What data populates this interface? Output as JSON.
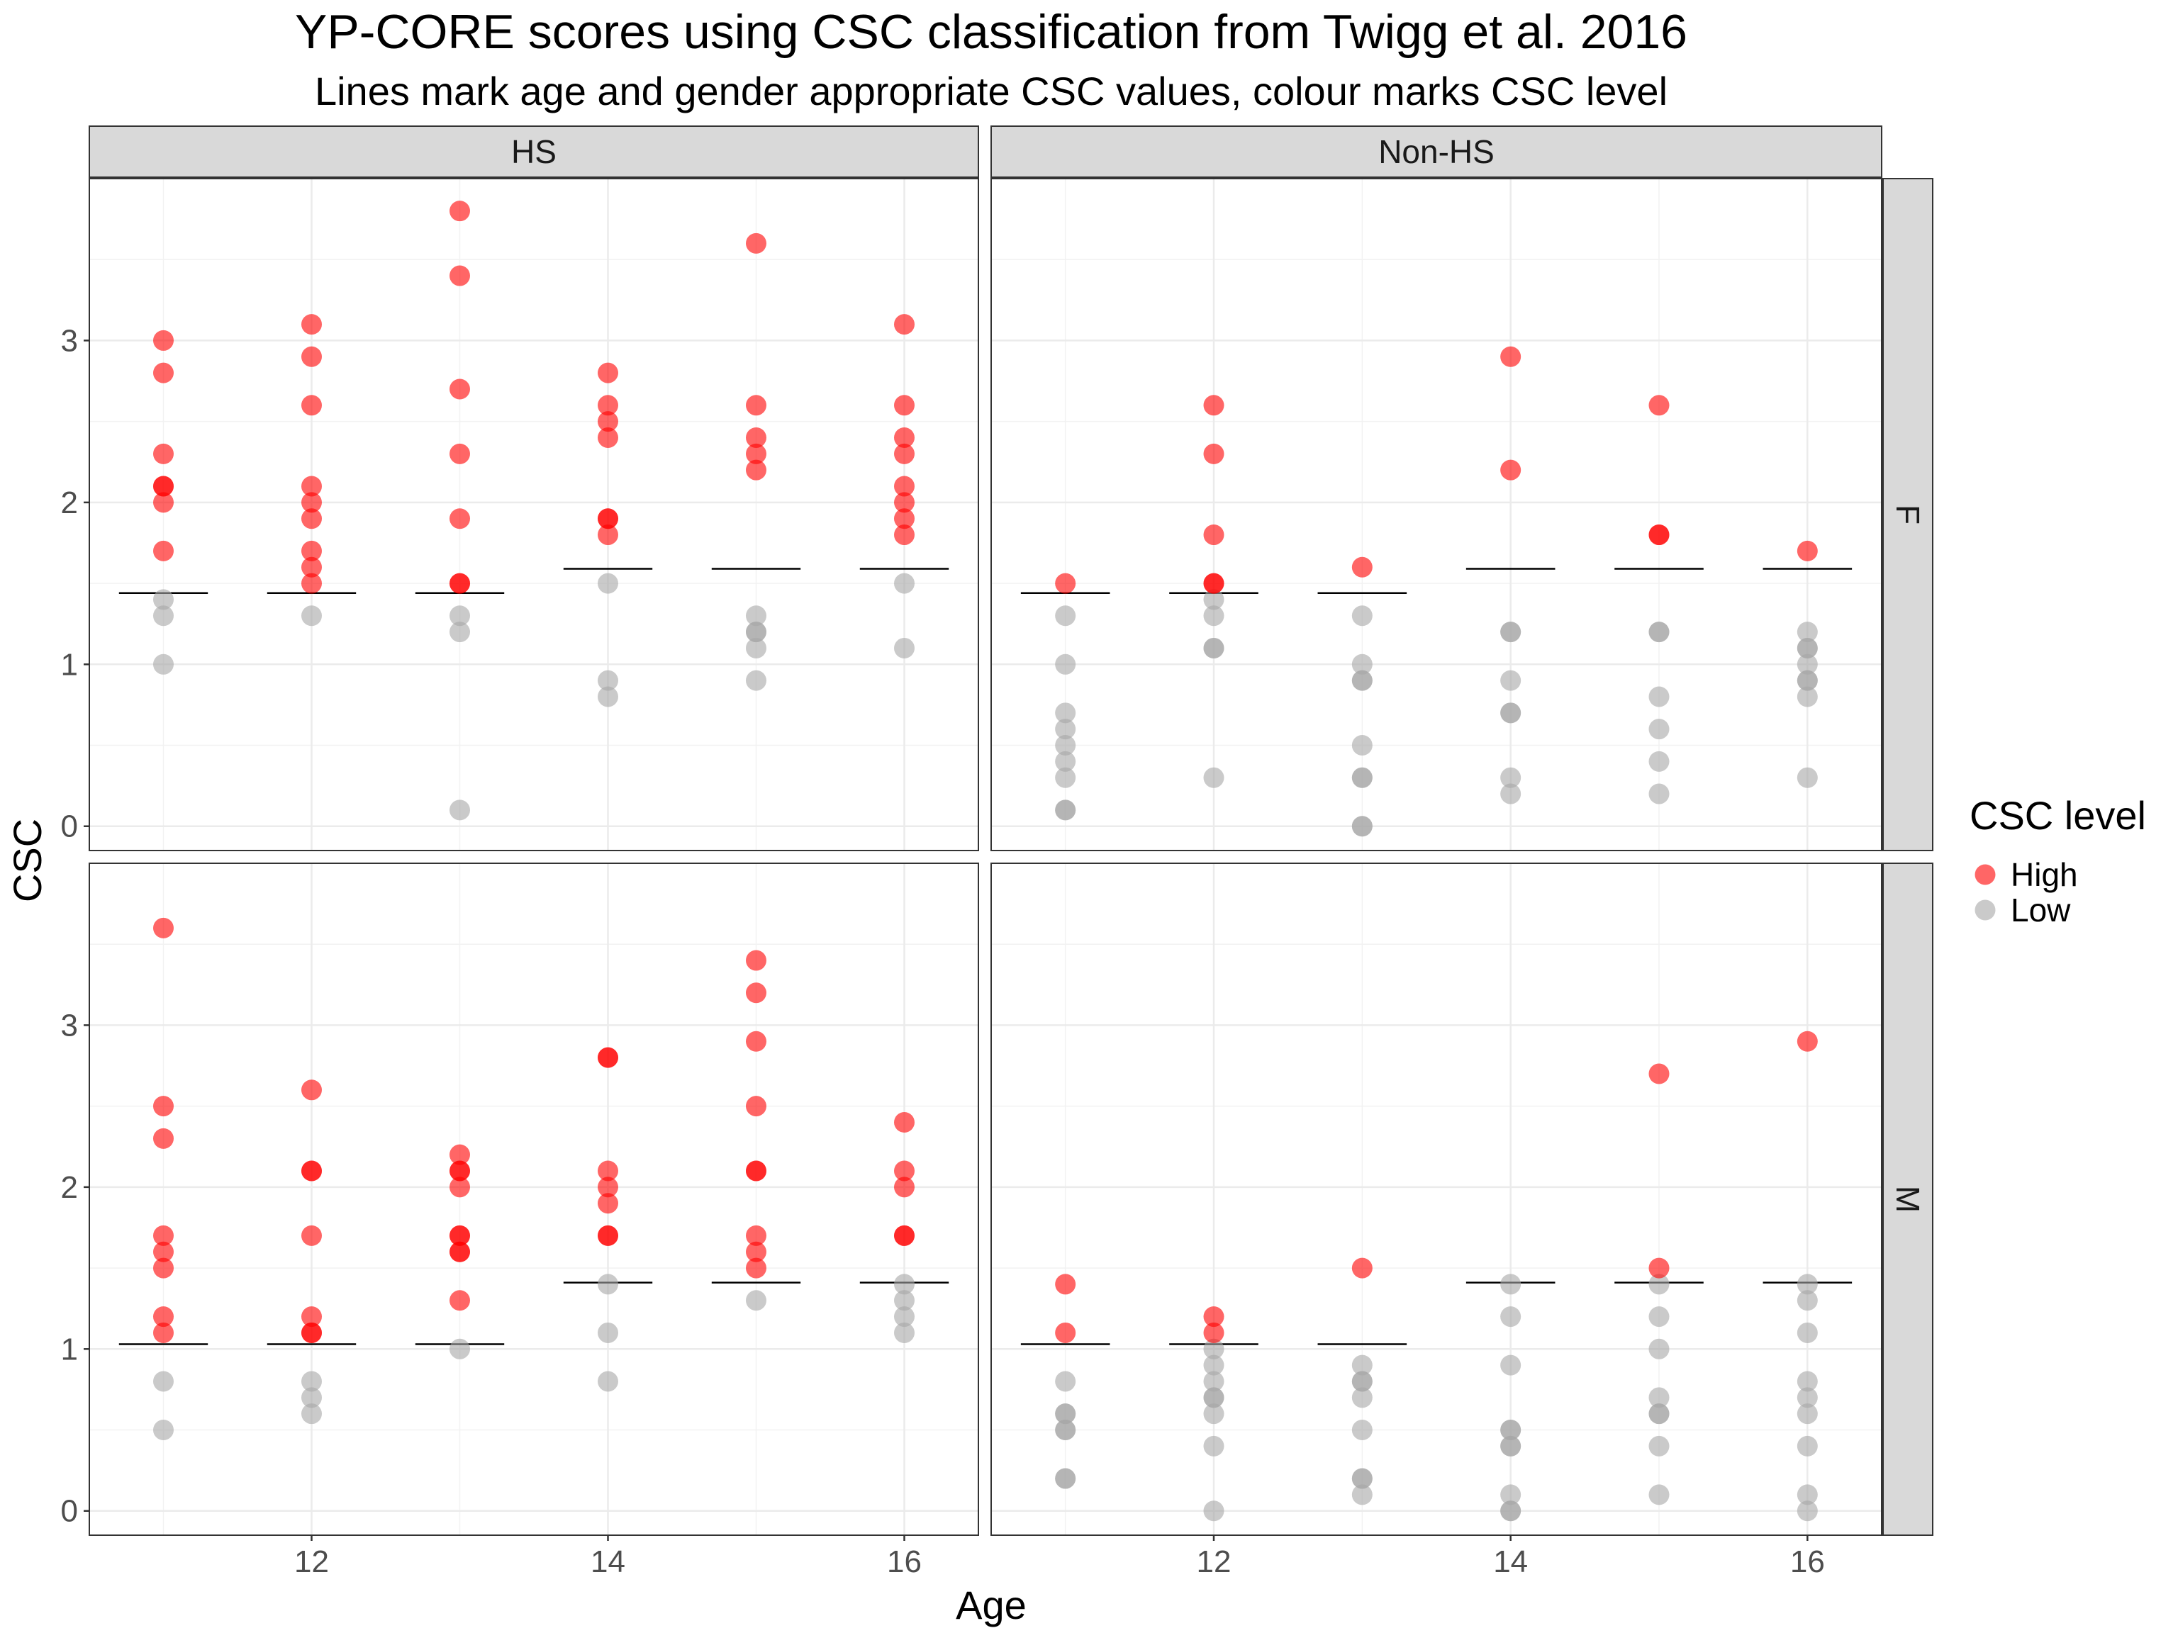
{
  "chart_data": {
    "type": "scatter",
    "title": "YP-CORE scores using CSC classification from Twigg et al. 2016",
    "subtitle": "Lines mark age and gender appropriate CSC values, colour marks CSC level",
    "xlabel": "Age",
    "ylabel": "CSC",
    "xlim": [
      10.5,
      16.5
    ],
    "ylim": [
      -0.15,
      4.0
    ],
    "x_ticks": [
      "12",
      "14",
      "16"
    ],
    "y_ticks": [
      "0",
      "1",
      "2",
      "3"
    ],
    "grid": true,
    "legend": {
      "title": "CSC level",
      "position": "right",
      "entries": [
        {
          "label": "High",
          "color": "#ff0000"
        },
        {
          "label": "Low",
          "color": "#a6a6a6"
        }
      ]
    },
    "col_facets": [
      "HS",
      "Non-HS"
    ],
    "row_facets": [
      "F",
      "M"
    ],
    "cutoffs": [
      {
        "gender": "F",
        "points": [
          [
            11,
            1.44
          ],
          [
            12,
            1.44
          ],
          [
            13,
            1.44
          ],
          [
            14,
            1.59
          ],
          [
            15,
            1.59
          ],
          [
            16,
            1.59
          ]
        ]
      },
      {
        "gender": "M",
        "points": [
          [
            11,
            1.03
          ],
          [
            12,
            1.03
          ],
          [
            13,
            1.03
          ],
          [
            14,
            1.41
          ],
          [
            15,
            1.41
          ],
          [
            16,
            1.41
          ]
        ]
      }
    ],
    "panels": [
      {
        "col": "HS",
        "row": "F",
        "high": [
          [
            11,
            3.0
          ],
          [
            11,
            2.8
          ],
          [
            11,
            2.3
          ],
          [
            11,
            2.1
          ],
          [
            11,
            2.1
          ],
          [
            11,
            2.0
          ],
          [
            11,
            1.7
          ],
          [
            12,
            3.1
          ],
          [
            12,
            2.9
          ],
          [
            12,
            2.6
          ],
          [
            12,
            2.1
          ],
          [
            12,
            2.0
          ],
          [
            12,
            1.9
          ],
          [
            12,
            1.7
          ],
          [
            12,
            1.6
          ],
          [
            12,
            1.5
          ],
          [
            13,
            3.8
          ],
          [
            13,
            3.4
          ],
          [
            13,
            2.7
          ],
          [
            13,
            2.3
          ],
          [
            13,
            1.9
          ],
          [
            13,
            1.5
          ],
          [
            13,
            1.5
          ],
          [
            14,
            2.8
          ],
          [
            14,
            2.6
          ],
          [
            14,
            2.5
          ],
          [
            14,
            2.4
          ],
          [
            14,
            1.9
          ],
          [
            14,
            1.9
          ],
          [
            14,
            1.8
          ],
          [
            15,
            3.6
          ],
          [
            15,
            2.6
          ],
          [
            15,
            2.4
          ],
          [
            15,
            2.3
          ],
          [
            15,
            2.2
          ],
          [
            16,
            3.1
          ],
          [
            16,
            2.6
          ],
          [
            16,
            2.4
          ],
          [
            16,
            2.3
          ],
          [
            16,
            2.1
          ],
          [
            16,
            2.0
          ],
          [
            16,
            1.9
          ],
          [
            16,
            1.8
          ]
        ],
        "low": [
          [
            11,
            1.4
          ],
          [
            11,
            1.3
          ],
          [
            11,
            1.0
          ],
          [
            12,
            1.3
          ],
          [
            13,
            1.3
          ],
          [
            13,
            1.2
          ],
          [
            13,
            0.1
          ],
          [
            14,
            1.5
          ],
          [
            14,
            0.9
          ],
          [
            14,
            0.8
          ],
          [
            15,
            1.3
          ],
          [
            15,
            1.2
          ],
          [
            15,
            1.2
          ],
          [
            15,
            1.1
          ],
          [
            15,
            0.9
          ],
          [
            16,
            1.5
          ],
          [
            16,
            1.1
          ]
        ]
      },
      {
        "col": "Non-HS",
        "row": "F",
        "high": [
          [
            11,
            1.5
          ],
          [
            12,
            2.6
          ],
          [
            12,
            2.3
          ],
          [
            12,
            1.8
          ],
          [
            12,
            1.5
          ],
          [
            12,
            1.5
          ],
          [
            13,
            1.6
          ],
          [
            14,
            2.9
          ],
          [
            14,
            2.2
          ],
          [
            15,
            2.6
          ],
          [
            15,
            1.8
          ],
          [
            15,
            1.8
          ],
          [
            16,
            1.7
          ]
        ],
        "low": [
          [
            11,
            1.3
          ],
          [
            11,
            1.0
          ],
          [
            11,
            0.7
          ],
          [
            11,
            0.6
          ],
          [
            11,
            0.5
          ],
          [
            11,
            0.4
          ],
          [
            11,
            0.3
          ],
          [
            11,
            0.1
          ],
          [
            11,
            0.1
          ],
          [
            12,
            1.4
          ],
          [
            12,
            1.3
          ],
          [
            12,
            1.1
          ],
          [
            12,
            1.1
          ],
          [
            12,
            0.3
          ],
          [
            13,
            1.3
          ],
          [
            13,
            1.0
          ],
          [
            13,
            0.9
          ],
          [
            13,
            0.9
          ],
          [
            13,
            0.5
          ],
          [
            13,
            0.3
          ],
          [
            13,
            0.3
          ],
          [
            13,
            0.0
          ],
          [
            13,
            0.0
          ],
          [
            14,
            1.2
          ],
          [
            14,
            1.2
          ],
          [
            14,
            0.9
          ],
          [
            14,
            0.7
          ],
          [
            14,
            0.7
          ],
          [
            14,
            0.3
          ],
          [
            14,
            0.2
          ],
          [
            15,
            1.2
          ],
          [
            15,
            1.2
          ],
          [
            15,
            0.8
          ],
          [
            15,
            0.6
          ],
          [
            15,
            0.4
          ],
          [
            15,
            0.2
          ],
          [
            16,
            1.2
          ],
          [
            16,
            1.1
          ],
          [
            16,
            1.1
          ],
          [
            16,
            1.0
          ],
          [
            16,
            0.9
          ],
          [
            16,
            0.9
          ],
          [
            16,
            0.8
          ],
          [
            16,
            0.3
          ]
        ]
      },
      {
        "col": "HS",
        "row": "M",
        "high": [
          [
            11,
            3.6
          ],
          [
            11,
            2.5
          ],
          [
            11,
            2.3
          ],
          [
            11,
            1.7
          ],
          [
            11,
            1.6
          ],
          [
            11,
            1.5
          ],
          [
            11,
            1.2
          ],
          [
            11,
            1.1
          ],
          [
            12,
            2.6
          ],
          [
            12,
            2.1
          ],
          [
            12,
            2.1
          ],
          [
            12,
            1.7
          ],
          [
            12,
            1.2
          ],
          [
            12,
            1.1
          ],
          [
            12,
            1.1
          ],
          [
            13,
            2.2
          ],
          [
            13,
            2.1
          ],
          [
            13,
            2.1
          ],
          [
            13,
            2.0
          ],
          [
            13,
            1.7
          ],
          [
            13,
            1.7
          ],
          [
            13,
            1.6
          ],
          [
            13,
            1.6
          ],
          [
            13,
            1.3
          ],
          [
            14,
            2.8
          ],
          [
            14,
            2.8
          ],
          [
            14,
            2.1
          ],
          [
            14,
            2.0
          ],
          [
            14,
            1.9
          ],
          [
            14,
            1.7
          ],
          [
            14,
            1.7
          ],
          [
            15,
            3.4
          ],
          [
            15,
            3.2
          ],
          [
            15,
            2.9
          ],
          [
            15,
            2.5
          ],
          [
            15,
            2.1
          ],
          [
            15,
            2.1
          ],
          [
            15,
            1.7
          ],
          [
            15,
            1.6
          ],
          [
            15,
            1.5
          ],
          [
            16,
            2.4
          ],
          [
            16,
            2.1
          ],
          [
            16,
            2.0
          ],
          [
            16,
            1.7
          ],
          [
            16,
            1.7
          ]
        ],
        "low": [
          [
            11,
            0.8
          ],
          [
            11,
            0.5
          ],
          [
            12,
            0.8
          ],
          [
            12,
            0.7
          ],
          [
            12,
            0.6
          ],
          [
            13,
            1.0
          ],
          [
            14,
            1.4
          ],
          [
            14,
            1.1
          ],
          [
            14,
            0.8
          ],
          [
            15,
            1.3
          ],
          [
            16,
            1.4
          ],
          [
            16,
            1.3
          ],
          [
            16,
            1.2
          ],
          [
            16,
            1.1
          ]
        ]
      },
      {
        "col": "Non-HS",
        "row": "M",
        "high": [
          [
            11,
            1.4
          ],
          [
            11,
            1.1
          ],
          [
            12,
            1.2
          ],
          [
            12,
            1.1
          ],
          [
            13,
            1.5
          ],
          [
            15,
            2.7
          ],
          [
            15,
            1.5
          ],
          [
            16,
            2.9
          ]
        ],
        "low": [
          [
            11,
            0.8
          ],
          [
            11,
            0.6
          ],
          [
            11,
            0.6
          ],
          [
            11,
            0.5
          ],
          [
            11,
            0.5
          ],
          [
            11,
            0.2
          ],
          [
            11,
            0.2
          ],
          [
            12,
            1.0
          ],
          [
            12,
            0.9
          ],
          [
            12,
            0.8
          ],
          [
            12,
            0.7
          ],
          [
            12,
            0.7
          ],
          [
            12,
            0.6
          ],
          [
            12,
            0.4
          ],
          [
            12,
            0.0
          ],
          [
            13,
            0.9
          ],
          [
            13,
            0.8
          ],
          [
            13,
            0.8
          ],
          [
            13,
            0.7
          ],
          [
            13,
            0.5
          ],
          [
            13,
            0.2
          ],
          [
            13,
            0.2
          ],
          [
            13,
            0.1
          ],
          [
            14,
            1.4
          ],
          [
            14,
            1.2
          ],
          [
            14,
            0.9
          ],
          [
            14,
            0.5
          ],
          [
            14,
            0.5
          ],
          [
            14,
            0.4
          ],
          [
            14,
            0.4
          ],
          [
            14,
            0.1
          ],
          [
            14,
            0.0
          ],
          [
            14,
            0.0
          ],
          [
            15,
            1.4
          ],
          [
            15,
            1.2
          ],
          [
            15,
            1.0
          ],
          [
            15,
            0.7
          ],
          [
            15,
            0.6
          ],
          [
            15,
            0.6
          ],
          [
            15,
            0.4
          ],
          [
            15,
            0.1
          ],
          [
            16,
            1.4
          ],
          [
            16,
            1.3
          ],
          [
            16,
            1.1
          ],
          [
            16,
            0.8
          ],
          [
            16,
            0.7
          ],
          [
            16,
            0.6
          ],
          [
            16,
            0.4
          ],
          [
            16,
            0.1
          ],
          [
            16,
            0.0
          ]
        ]
      }
    ]
  }
}
